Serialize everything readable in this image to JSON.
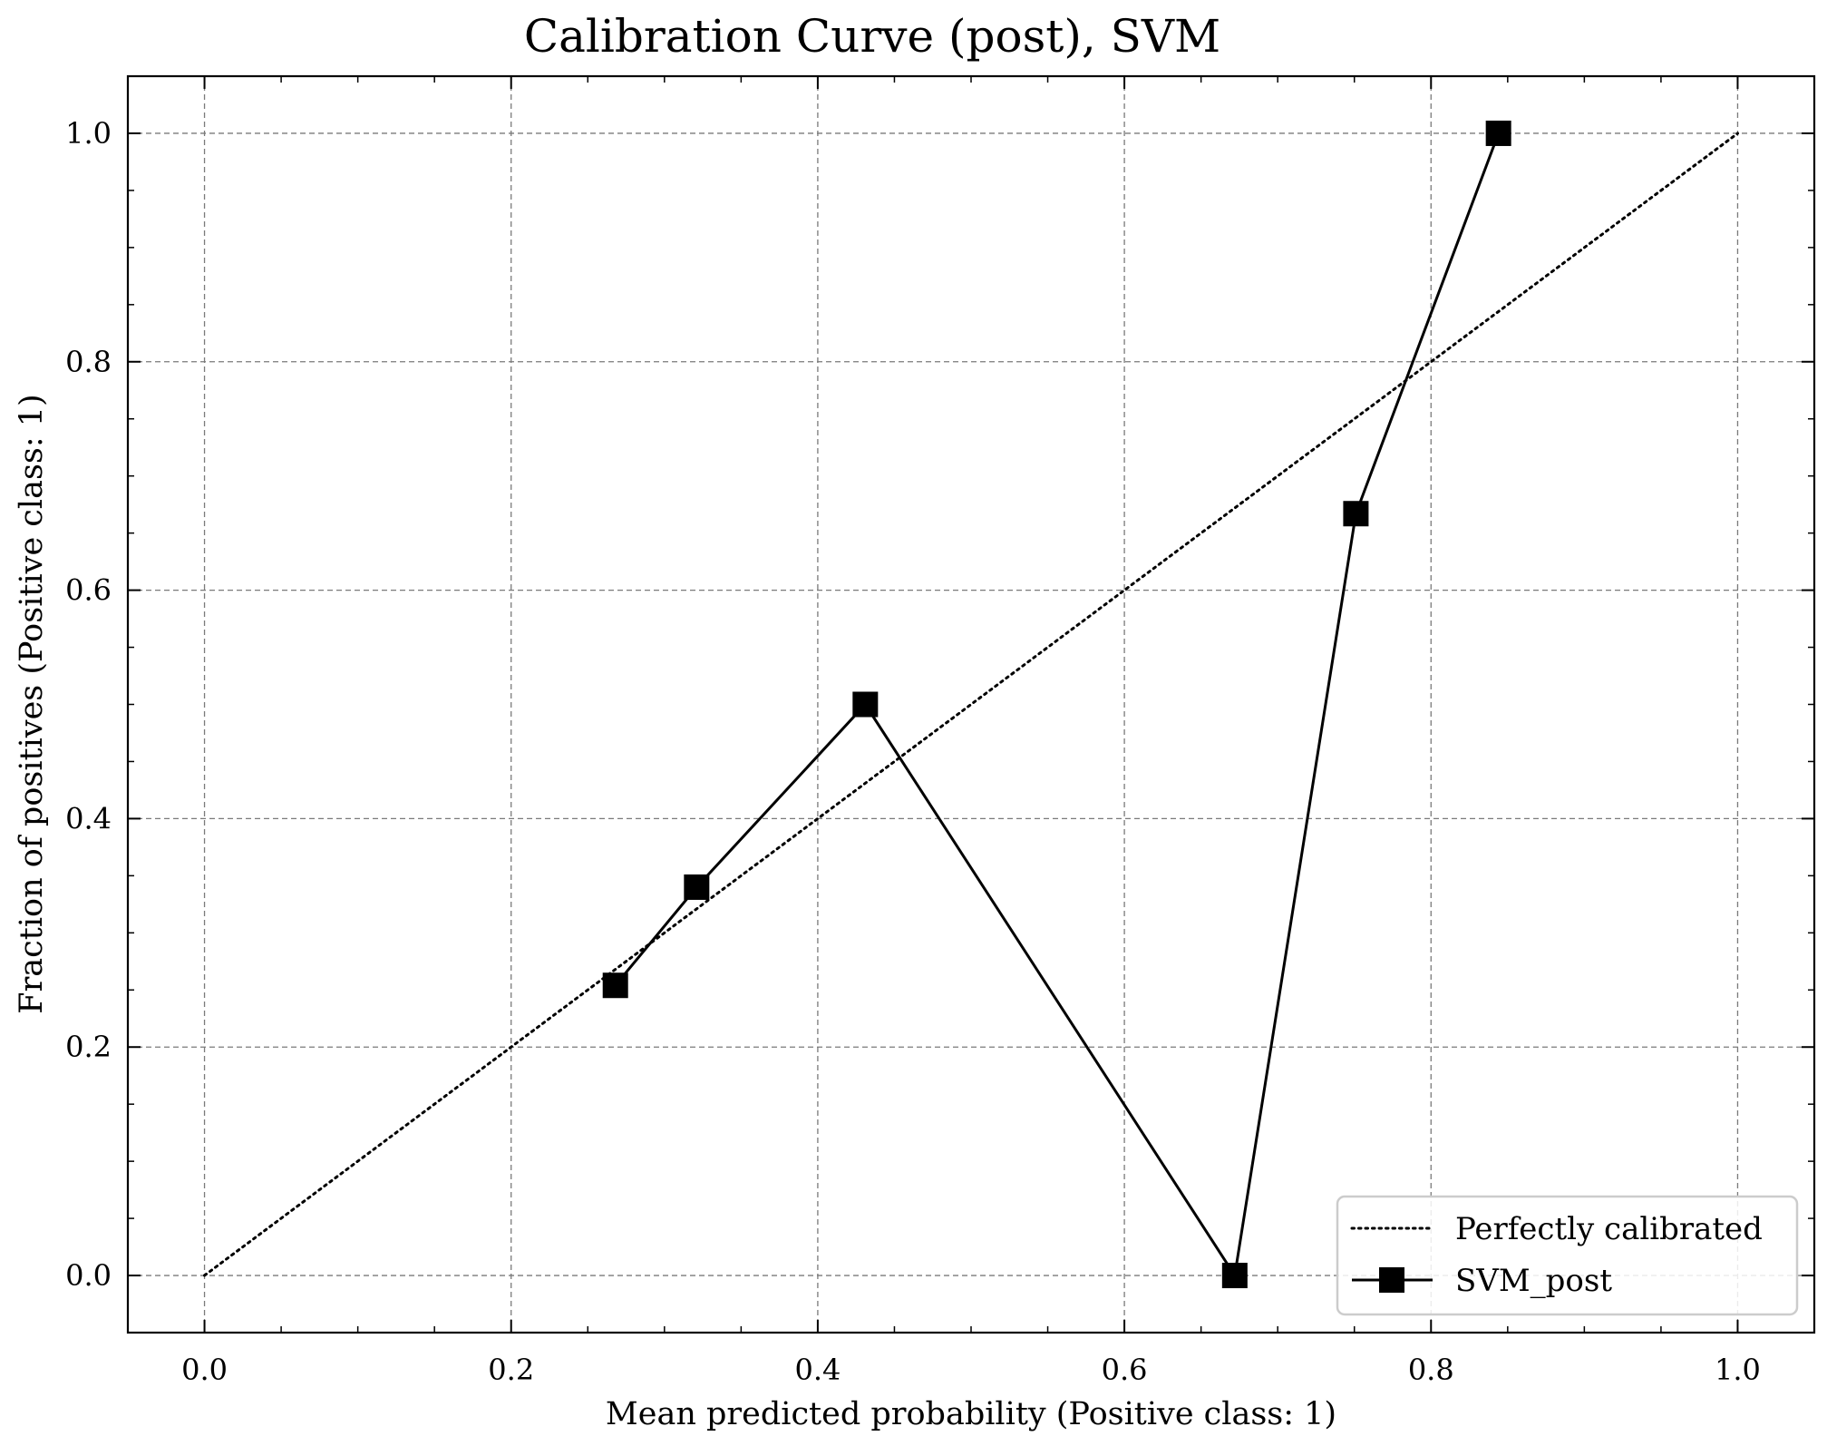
{
  "chart_data": {
    "type": "line",
    "title": "Calibration Curve (post), SVM",
    "xlabel": "Mean predicted probability (Positive class: 1)",
    "ylabel": "Fraction of positives (Positive class: 1)",
    "xlim": [
      -0.05,
      1.05
    ],
    "ylim": [
      -0.05,
      1.05
    ],
    "xticks": [
      "0.0",
      "0.2",
      "0.4",
      "0.6",
      "0.8",
      "1.0"
    ],
    "yticks": [
      "0.0",
      "0.2",
      "0.4",
      "0.6",
      "0.8",
      "1.0"
    ],
    "grid": true,
    "legend_position": "bottom-right",
    "series": [
      {
        "name": "Perfectly calibrated",
        "style": "dotted",
        "color": "#000000",
        "x": [
          0.0,
          1.0
        ],
        "y": [
          0.0,
          1.0
        ]
      },
      {
        "name": "SVM_post",
        "style": "solid",
        "marker": "square",
        "color": "#000000",
        "x": [
          0.268,
          0.321,
          0.431,
          0.672,
          0.751,
          0.844
        ],
        "y": [
          0.254,
          0.34,
          0.5,
          0.0,
          0.667,
          1.0
        ]
      }
    ]
  }
}
